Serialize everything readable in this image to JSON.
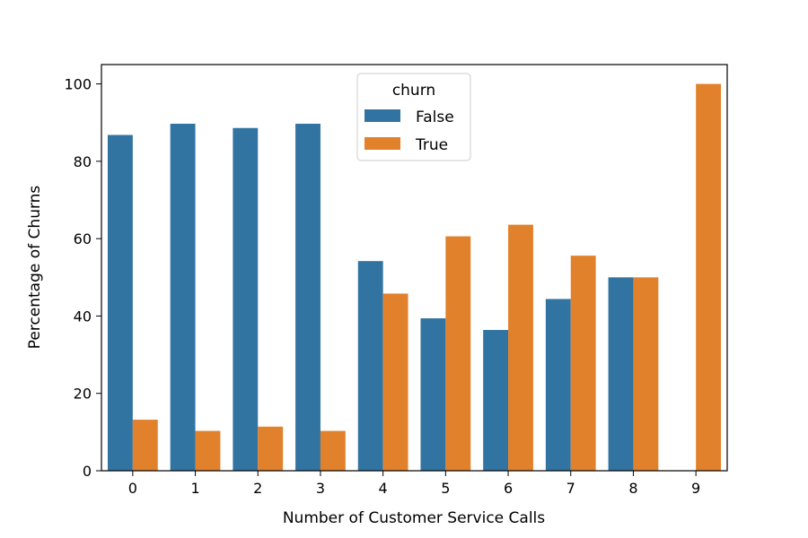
{
  "chart_data": {
    "type": "bar",
    "categories": [
      "0",
      "1",
      "2",
      "3",
      "4",
      "5",
      "6",
      "7",
      "8",
      "9"
    ],
    "series": [
      {
        "name": "False",
        "color": "#3274a1",
        "values": [
          86.8,
          89.7,
          88.6,
          89.7,
          54.2,
          39.4,
          36.4,
          44.4,
          50.0,
          0.0
        ]
      },
      {
        "name": "True",
        "color": "#e1812c",
        "values": [
          13.2,
          10.3,
          11.4,
          10.3,
          45.8,
          60.6,
          63.6,
          55.6,
          50.0,
          100.0
        ]
      }
    ],
    "xlabel": "Number of Customer Service Calls",
    "ylabel": "Percentage of Churns",
    "ylim": [
      0,
      105
    ],
    "yticks": [
      0,
      20,
      40,
      60,
      80,
      100
    ],
    "grid": false,
    "legend": {
      "title": "churn",
      "placement": "upper-center"
    }
  }
}
